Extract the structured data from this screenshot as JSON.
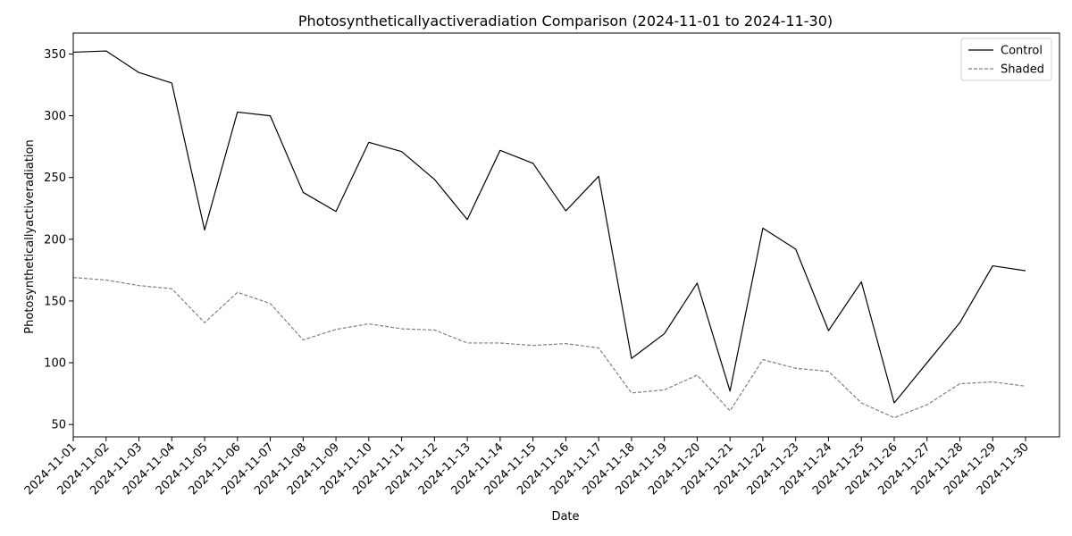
{
  "chart_data": {
    "type": "line",
    "title": "Photosyntheticallyactiveradiation Comparison (2024-11-01 to 2024-11-30)",
    "xlabel": "Date",
    "ylabel": "Photosyntheticallyactiveradiation",
    "ylim": [
      40,
      367
    ],
    "yticks": [
      50,
      100,
      150,
      200,
      250,
      300,
      350
    ],
    "grid": false,
    "legend_position": "top-right",
    "x": [
      "2024-11-01",
      "2024-11-02",
      "2024-11-03",
      "2024-11-04",
      "2024-11-05",
      "2024-11-06",
      "2024-11-07",
      "2024-11-08",
      "2024-11-09",
      "2024-11-10",
      "2024-11-11",
      "2024-11-12",
      "2024-11-13",
      "2024-11-14",
      "2024-11-15",
      "2024-11-16",
      "2024-11-17",
      "2024-11-18",
      "2024-11-19",
      "2024-11-20",
      "2024-11-21",
      "2024-11-22",
      "2024-11-23",
      "2024-11-24",
      "2024-11-25",
      "2024-11-26",
      "2024-11-27",
      "2024-11-28",
      "2024-11-29",
      "2024-11-30"
    ],
    "series": [
      {
        "name": "Control",
        "color": "#000000",
        "dash": "solid",
        "values": [
          351.5,
          352.5,
          335,
          326.5,
          207.5,
          303,
          300,
          238,
          222.5,
          278.5,
          271,
          248.5,
          216,
          272,
          261.5,
          223,
          251,
          103.5,
          123.5,
          164.5,
          77,
          209,
          192,
          126,
          165.5,
          67.5,
          100,
          132.5,
          178.5,
          174.5
        ]
      },
      {
        "name": "Shaded",
        "color": "#808080",
        "dash": "dashed",
        "values": [
          169,
          167,
          162.5,
          160,
          132.5,
          157,
          148,
          118.5,
          127,
          131.5,
          127.5,
          126.5,
          116,
          116,
          114,
          115.5,
          112,
          75.5,
          78,
          90,
          61,
          102.5,
          95.5,
          93,
          67.5,
          55.5,
          66,
          83,
          84.5,
          81
        ]
      }
    ]
  }
}
